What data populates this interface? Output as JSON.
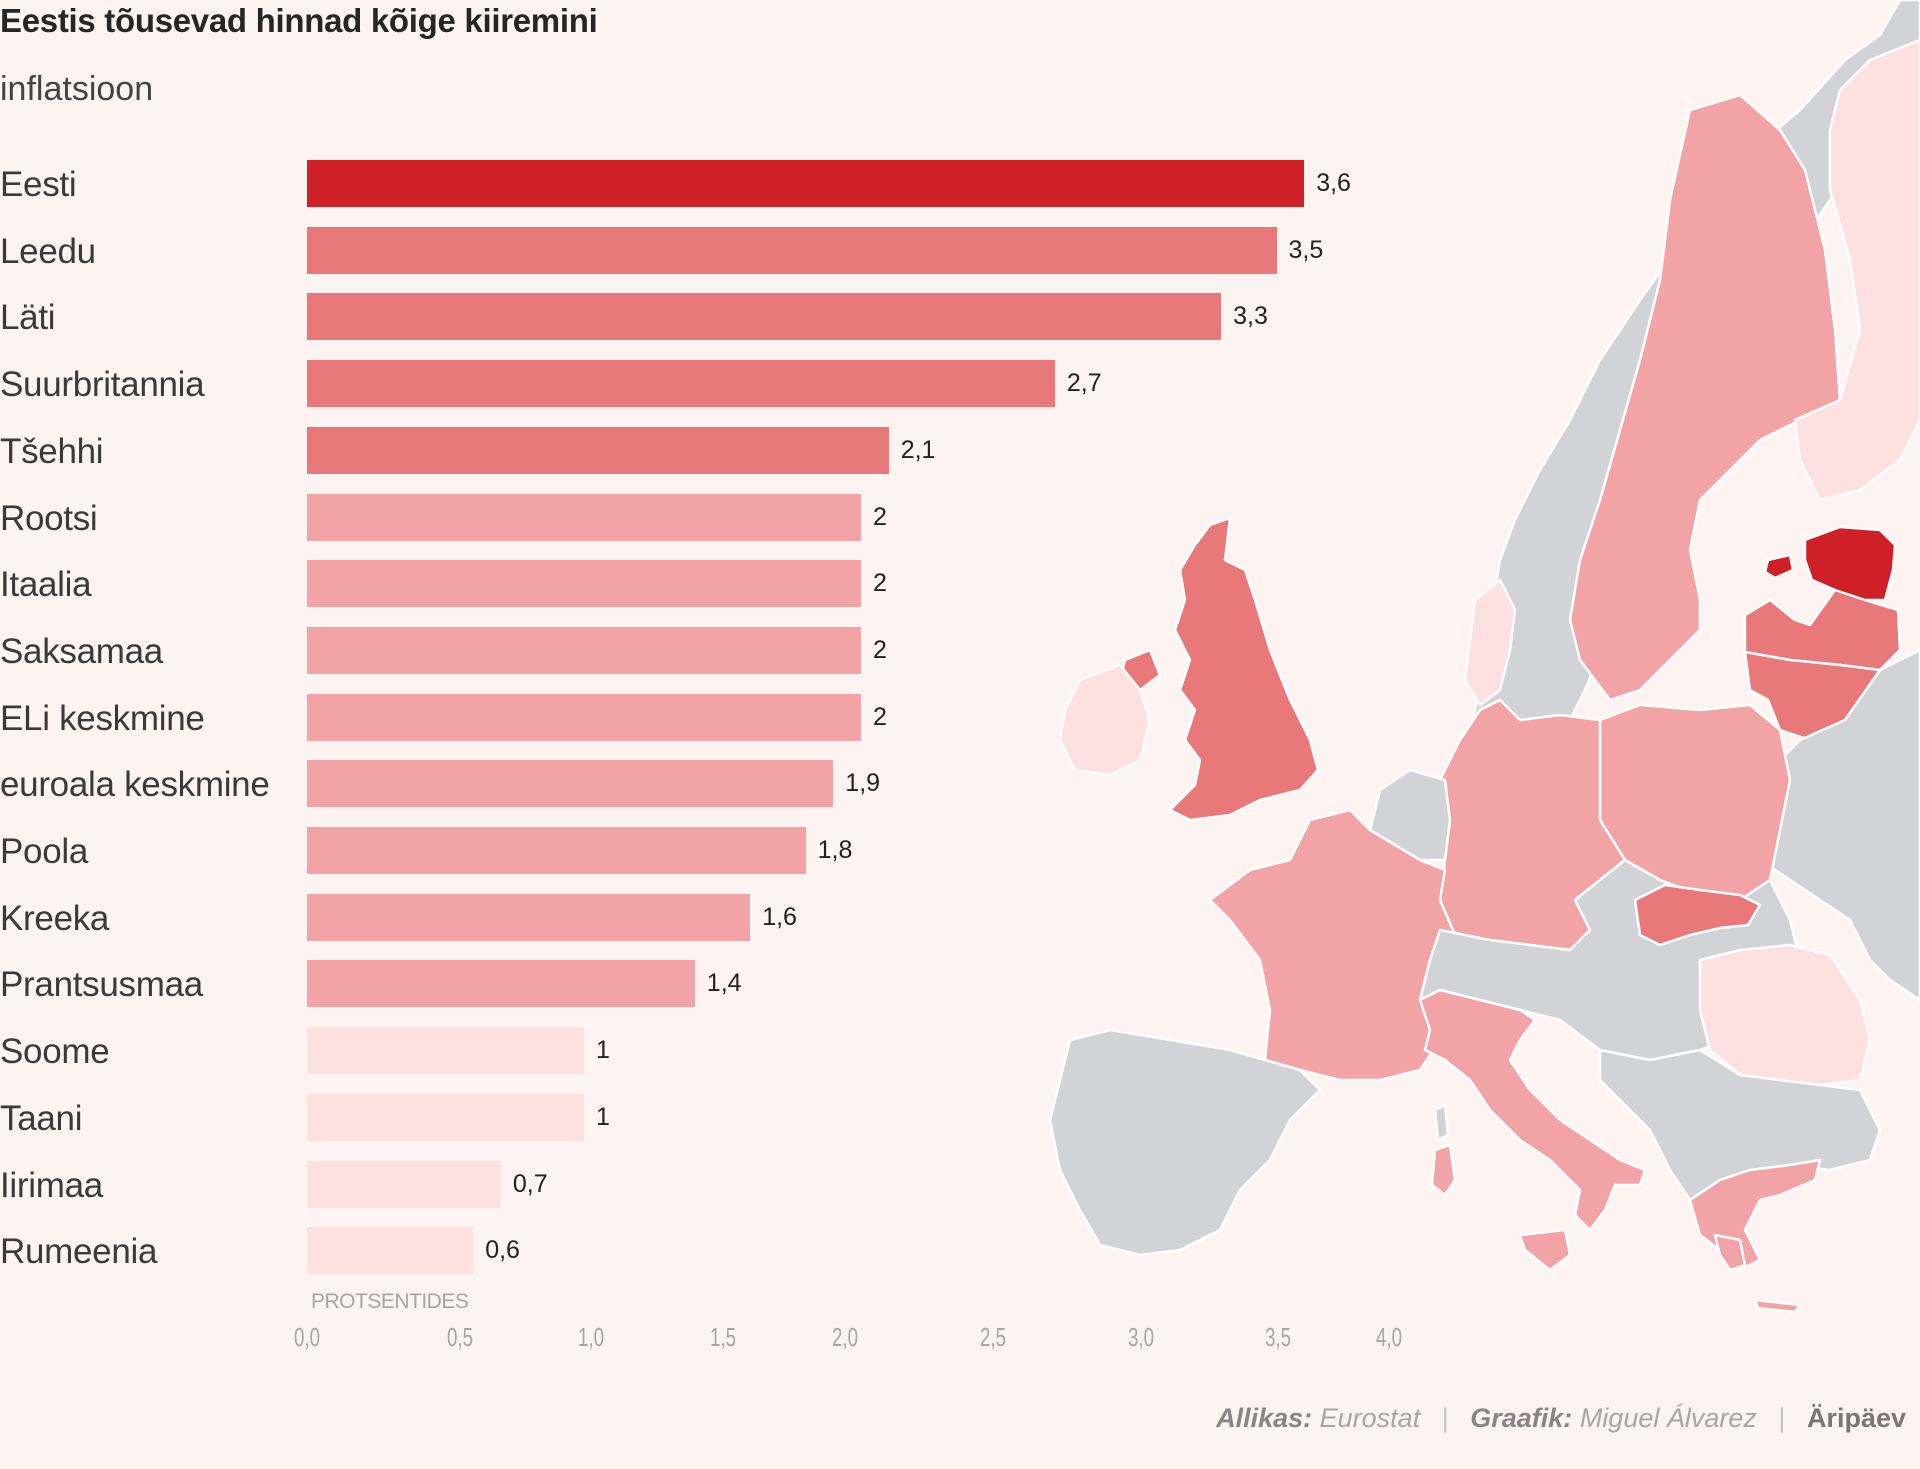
{
  "header": {
    "title": "Eestis tõusevad hinnad kõige kiiremini",
    "subtitle": "inflatsioon"
  },
  "chart_data": {
    "type": "bar",
    "orientation": "horizontal",
    "title": "Eestis tõusevad hinnad kõige kiiremini",
    "subtitle": "inflatsioon",
    "xlabel": "PROTSENTIDES",
    "ylabel": "",
    "xlim": [
      0,
      4.0
    ],
    "grid": false,
    "categories": [
      "Eesti",
      "Leedu",
      "Läti",
      "Suurbritannia",
      "Tšehhi",
      "Rootsi",
      "Itaalia",
      "Saksamaa",
      "ELi keskmine",
      "euroala keskmine",
      "Poola",
      "Kreeka",
      "Prantsusmaa",
      "Soome",
      "Taani",
      "Iirimaa",
      "Rumeenia"
    ],
    "values": [
      3.6,
      3.5,
      3.3,
      2.7,
      2.1,
      2,
      2,
      2,
      2,
      1.9,
      1.8,
      1.6,
      1.4,
      1,
      1,
      0.7,
      0.6
    ],
    "value_labels": [
      "3,6",
      "3,5",
      "3,3",
      "2,7",
      "2,1",
      "2",
      "2",
      "2",
      "2",
      "1,9",
      "1,8",
      "1,6",
      "1,4",
      "1",
      "1",
      "0,7",
      "0,6"
    ],
    "x_ticks": [
      "0,0",
      "0,5",
      "1,0",
      "1,5",
      "2,0",
      "2,5",
      "3,0",
      "3,5",
      "4,0"
    ],
    "color_scale": {
      "highest": "#cf1f27",
      "high": "#e8787a",
      "medium": "#f1a3a5",
      "low": "#fde0df",
      "no_data": "#d2d3d6"
    }
  },
  "map": {
    "description": "Europe choropleth shaded by inflation",
    "colors": {
      "land_no_data": "#d2d3d6",
      "border": "#ffffff"
    }
  },
  "footer": {
    "source_label": "Allikas:",
    "source_value": "Eurostat",
    "graphic_label": "Graafik:",
    "graphic_value": "Miguel Álvarez",
    "brand": "Äripäev",
    "separator": "|"
  }
}
